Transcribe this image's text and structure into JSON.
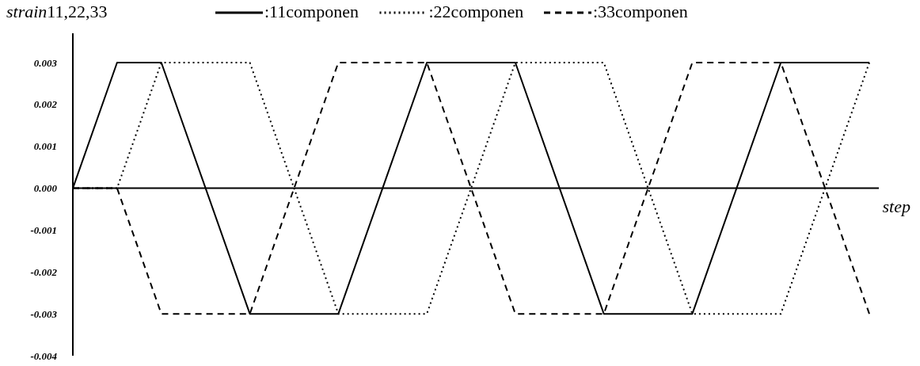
{
  "chart_data": {
    "type": "line",
    "ylabel": "strain11,22,33",
    "xlabel": "step",
    "categories": [
      null,
      null,
      null,
      null,
      null,
      null,
      null,
      null,
      null,
      null,
      null,
      null,
      null,
      null,
      null,
      null,
      null,
      null,
      null
    ],
    "series": [
      {
        "name": ":11componen",
        "color": "#000000",
        "line_style": "solid",
        "values": [
          0,
          0.003,
          0.003,
          0,
          -0.003,
          -0.003,
          -0.003,
          0,
          0.003,
          0.003,
          0.003,
          0,
          -0.003,
          -0.003,
          -0.003,
          0,
          0.003,
          0.003,
          0.003
        ]
      },
      {
        "name": ":22componen",
        "color": "#000000",
        "line_style": "dotted",
        "values": [
          0,
          0,
          0.003,
          0.003,
          0.003,
          0,
          -0.003,
          -0.003,
          -0.003,
          0,
          0.003,
          0.003,
          0.003,
          0,
          -0.003,
          -0.003,
          -0.003,
          0,
          0.003
        ]
      },
      {
        "name": ":33componen",
        "color": "#000000",
        "line_style": "dashed",
        "values": [
          0,
          0,
          -0.003,
          -0.003,
          -0.003,
          0,
          0.003,
          0.003,
          0.003,
          0,
          -0.003,
          -0.003,
          -0.003,
          0,
          0.003,
          0.003,
          0.003,
          0,
          -0.003
        ]
      }
    ],
    "ylim": [
      -0.004,
      0.0037
    ],
    "yticks": [
      {
        "value": 0.003,
        "label": "0.003"
      },
      {
        "value": 0.002,
        "label": "0.002"
      },
      {
        "value": 0.001,
        "label": "0.001"
      },
      {
        "value": 0,
        "label": "0.000"
      },
      {
        "value": -0.001,
        "label": "-0.001"
      },
      {
        "value": -0.002,
        "label": "-0.002"
      },
      {
        "value": -0.003,
        "label": "-0.003"
      },
      {
        "value": -0.004,
        "label": "-0.004"
      }
    ],
    "tick_labels": "y",
    "legend": "top"
  }
}
